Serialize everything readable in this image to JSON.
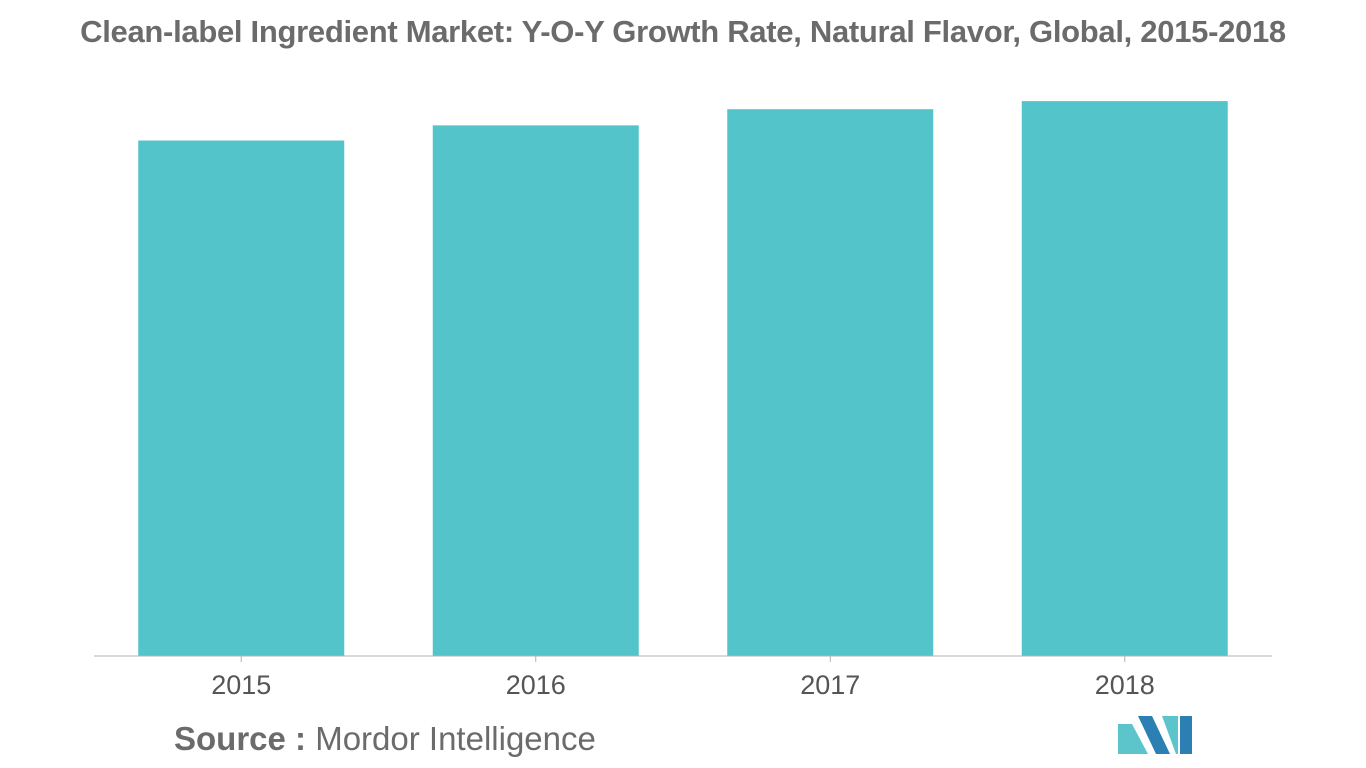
{
  "chart_data": {
    "type": "bar",
    "title": "Clean-label Ingredient Market: Y-O-Y Growth Rate, Natural Flavor, Global, 2015-2018",
    "categories": [
      "2015",
      "2016",
      "2017",
      "2018"
    ],
    "values": [
      5.1,
      5.25,
      5.41,
      5.49
    ],
    "xlabel": "",
    "ylabel": "",
    "ylim": [
      0,
      5.6
    ],
    "grid": false,
    "legend": "none",
    "bar_color": "#52c4ca",
    "axis_color": "#b3b3b3"
  },
  "footer": {
    "source_label": "Source :",
    "source_name": "Mordor Intelligence"
  },
  "logo": {
    "icon": "mordor-intelligence-logo",
    "colors": [
      "#5bc5cb",
      "#2b7fb3"
    ]
  }
}
